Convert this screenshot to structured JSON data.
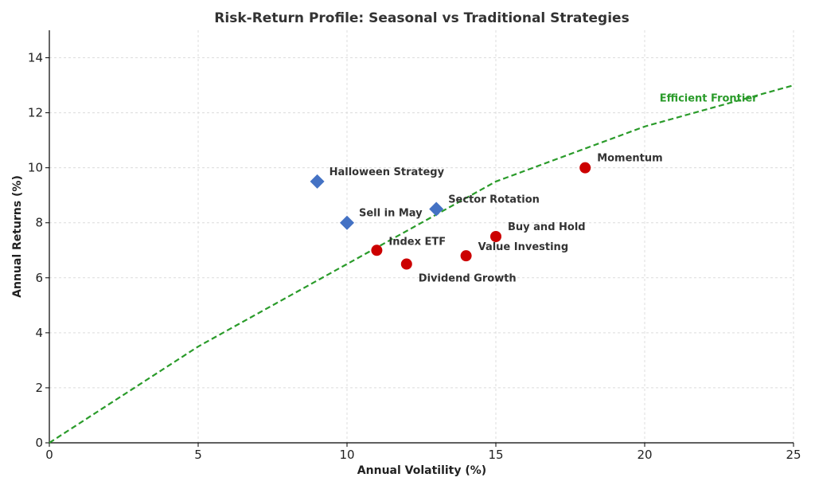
{
  "chart_data": {
    "type": "scatter",
    "title": "Risk-Return Profile: Seasonal vs Traditional Strategies",
    "xlabel": "Annual Volatility (%)",
    "ylabel": "Annual Returns (%)",
    "xlim": [
      0,
      25
    ],
    "ylim": [
      0,
      15
    ],
    "xticks": [
      0,
      5,
      10,
      15,
      20,
      25
    ],
    "yticks": [
      0,
      2,
      4,
      6,
      8,
      10,
      12,
      14
    ],
    "grid": true,
    "series": [
      {
        "group": "seasonal",
        "marker": "diamond",
        "color": "#4472c4",
        "points": [
          {
            "label": "Halloween Strategy",
            "x": 9,
            "y": 9.5
          },
          {
            "label": "Sell in May",
            "x": 10,
            "y": 8
          },
          {
            "label": "Sector Rotation",
            "x": 13,
            "y": 8.5
          }
        ]
      },
      {
        "group": "traditional",
        "marker": "circle",
        "color": "#cc0000",
        "points": [
          {
            "label": "Index ETF",
            "x": 11,
            "y": 7
          },
          {
            "label": "Dividend Growth",
            "x": 12,
            "y": 6.5
          },
          {
            "label": "Value Investing",
            "x": 14,
            "y": 6.8
          },
          {
            "label": "Buy and Hold",
            "x": 15,
            "y": 7.5
          },
          {
            "label": "Momentum",
            "x": 18,
            "y": 10
          }
        ]
      }
    ],
    "frontier": {
      "label": "Efficient Frontier",
      "color": "#2a9b2a",
      "style": "dashed",
      "x": [
        0,
        5,
        10,
        15,
        20,
        25
      ],
      "y": [
        0,
        3.5,
        6.5,
        9.5,
        11.5,
        13
      ]
    }
  }
}
